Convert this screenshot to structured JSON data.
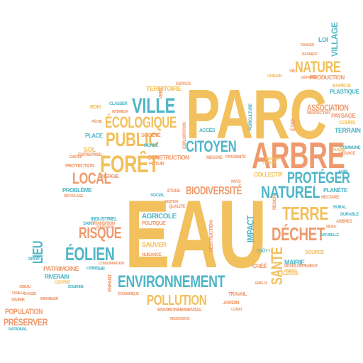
{
  "palette": {
    "yellow": "#f2c05c",
    "orange": "#ef9a6c",
    "teal": "#4fb6c7"
  },
  "words": {
    "parc": "PARC",
    "eau": "EAU",
    "arbre": "ARBRE",
    "foret": "FORÊT",
    "ville": "VILLE",
    "public": "PUBLIC",
    "ecologique": "ÉCOLOGIQUE",
    "citoyen": "CITOYEN",
    "nature": "NATURE",
    "association": "ASSOCIATION",
    "proteger": "PROTÉGER",
    "naturel": "NATUREL",
    "biodiversite": "BIODIVERSITÉ",
    "terre": "TERRE",
    "dechet": "DÉCHET",
    "sante": "SANTÉ",
    "local": "LOCAL",
    "risque": "RISQUE",
    "eolien": "ÉOLIEN",
    "lieu": "LIEU",
    "environnement": "ENVIRONNEMENT",
    "pollution": "POLLUTION",
    "preserver": "PRÉSERVER",
    "population": "POPULATION",
    "impact": "IMPACT",
    "territoire": "TERRITOIRE",
    "village": "VILLAGE",
    "loi": "LOI",
    "production": "PRODUCTION",
    "plastique": "PLASTIQUE",
    "paysage": "PAYSAGE",
    "terrain": "TERRAIN",
    "espece": "ESPÈCE",
    "respecter": "RESPECTER",
    "cours": "COURS",
    "etat": "ÉTAT",
    "collectif": "COLLECTIF",
    "planete": "PLANÈTE",
    "construction": "CONSTRUCTION",
    "futur": "FUTUR",
    "societe": "SOCIÉTÉ",
    "monde": "MONDE",
    "sol": "SOL",
    "protection": "PROTECTION",
    "energie": "ÉNERGIE",
    "probleme": "PROBLÈME",
    "place": "PLACE",
    "bois": "BOIS",
    "classer": "CLASSER",
    "agricole": "AGRICOLE",
    "politique": "POLITIQUE",
    "sauver": "SAUVER",
    "nuisance": "NUISANCE",
    "industriel": "INDUSTRIEL",
    "saint": "SAINT",
    "transition": "TRANSITION",
    "patrimoine": "PATRIMOINE",
    "riverain": "RIVERAIN",
    "air": "AIR",
    "usine": "USINE",
    "enfant": "ENFANT",
    "economique": "ÉCONOMIQUE",
    "environnemental": "ENVIRONNEMENTAL",
    "travail": "TRAVAIL",
    "jardin": "JARDIN",
    "mairie": "MAIRIE",
    "source": "SOURCE",
    "developpement": "DÉVELOPPEMENT",
    "cree": "CRÉÉ",
    "cout": "COÛT",
    "region": "RÉGION",
    "elevage": "ÉLEVAGE",
    "animal": "ANIMAL",
    "proximite": "PROXIMITÉ",
    "mesure": "MESURE",
    "agriculture": "AGRICULTURE",
    "exploitation": "EXPLOITATION",
    "vivre": "VIVRE",
    "national": "NATIONAL",
    "entreprise": "ENTREPRISE",
    "vert": "VERT",
    "droit": "DROIT",
    "acces": "ACCÈS",
    "pays": "PAYS",
    "espace": "ESPACE",
    "etude": "ÉTUDE",
    "social": "SOCIAL",
    "qualite": "QUALITÉ",
    "destruction": "DESTRUCTION",
    "projet": "PROJET",
    "hectare": "HECTARE",
    "danger": "DANGER",
    "batiment": "BÂTIMENT",
    "detruire": "DÉTRUIRE",
    "vie": "VIE",
    "urbain": "URBAIN",
    "interieur": "INTÉRIEUR",
    "peche": "PÊCHE",
    "oiseau": "OISEAU",
    "chasse": "CHASSE",
    "eolienne": "ÉOLIENNE",
    "immobilier": "IMMOBILIER",
    "famille": "FAMILLE",
    "commune": "COMMUNE",
    "menace": "MENACE",
    "centre": "CENTRE",
    "ressource": "RESSOURCE",
    "exister": "EXISTER",
    "proche": "PROCHE",
    "utilisation": "UTILISATION",
    "consommation": "CONSOMMATION",
    "emploi": "EMPLOI",
    "rural": "RURAL",
    "gestion": "GESTION",
    "agir": "AGIR",
    "climat": "CLIMAT",
    "durable": "DURABLE",
    "arbres": "ARBRES",
    "naturelle": "NATURELLE",
    "milieu": "MILIEU",
    "humain": "HUMAIN",
    "recyclage": "RECYCLAGE"
  }
}
